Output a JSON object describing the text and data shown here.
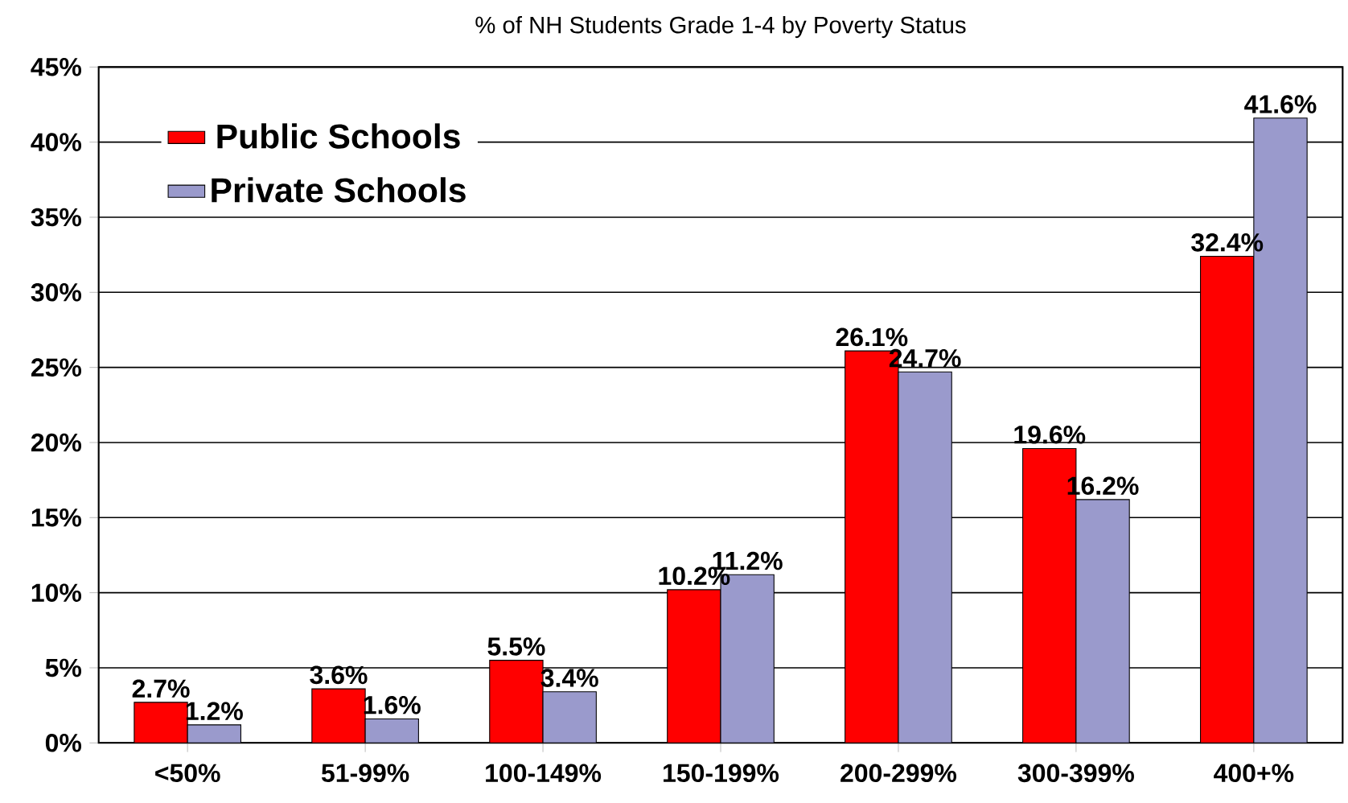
{
  "chart_data": {
    "type": "bar",
    "title": "% of NH Students Grade 1-4 by Poverty Status",
    "categories": [
      "<50%",
      "51-99%",
      "100-149%",
      "150-199%",
      "200-299%",
      "300-399%",
      "400+%"
    ],
    "series": [
      {
        "name": "Public Schools",
        "color": "#ff0000",
        "values": [
          2.7,
          3.6,
          5.5,
          10.2,
          26.1,
          19.6,
          32.4
        ],
        "value_labels": [
          "2.7%",
          "3.6%",
          "5.5%",
          "10.2%",
          "26.1%",
          "19.6%",
          "32.4%"
        ]
      },
      {
        "name": "Private Schools",
        "color": "#9a9acc",
        "values": [
          1.2,
          1.6,
          3.4,
          11.2,
          24.7,
          16.2,
          41.6
        ],
        "value_labels": [
          "1.2%",
          "1.6%",
          "3.4%",
          "11.2%",
          "24.7%",
          "16.2%",
          "41.6%"
        ]
      }
    ],
    "ylim": [
      0,
      45
    ],
    "yticks": [
      {
        "value": 0,
        "label": "0%"
      },
      {
        "value": 5,
        "label": "5%"
      },
      {
        "value": 10,
        "label": "10%"
      },
      {
        "value": 15,
        "label": "15%"
      },
      {
        "value": 20,
        "label": "20%"
      },
      {
        "value": 25,
        "label": "25%"
      },
      {
        "value": 30,
        "label": "30%"
      },
      {
        "value": 35,
        "label": "35%"
      },
      {
        "value": 40,
        "label": "40%"
      },
      {
        "value": 45,
        "label": "45%"
      }
    ],
    "grid": "y",
    "legend": "top left"
  }
}
